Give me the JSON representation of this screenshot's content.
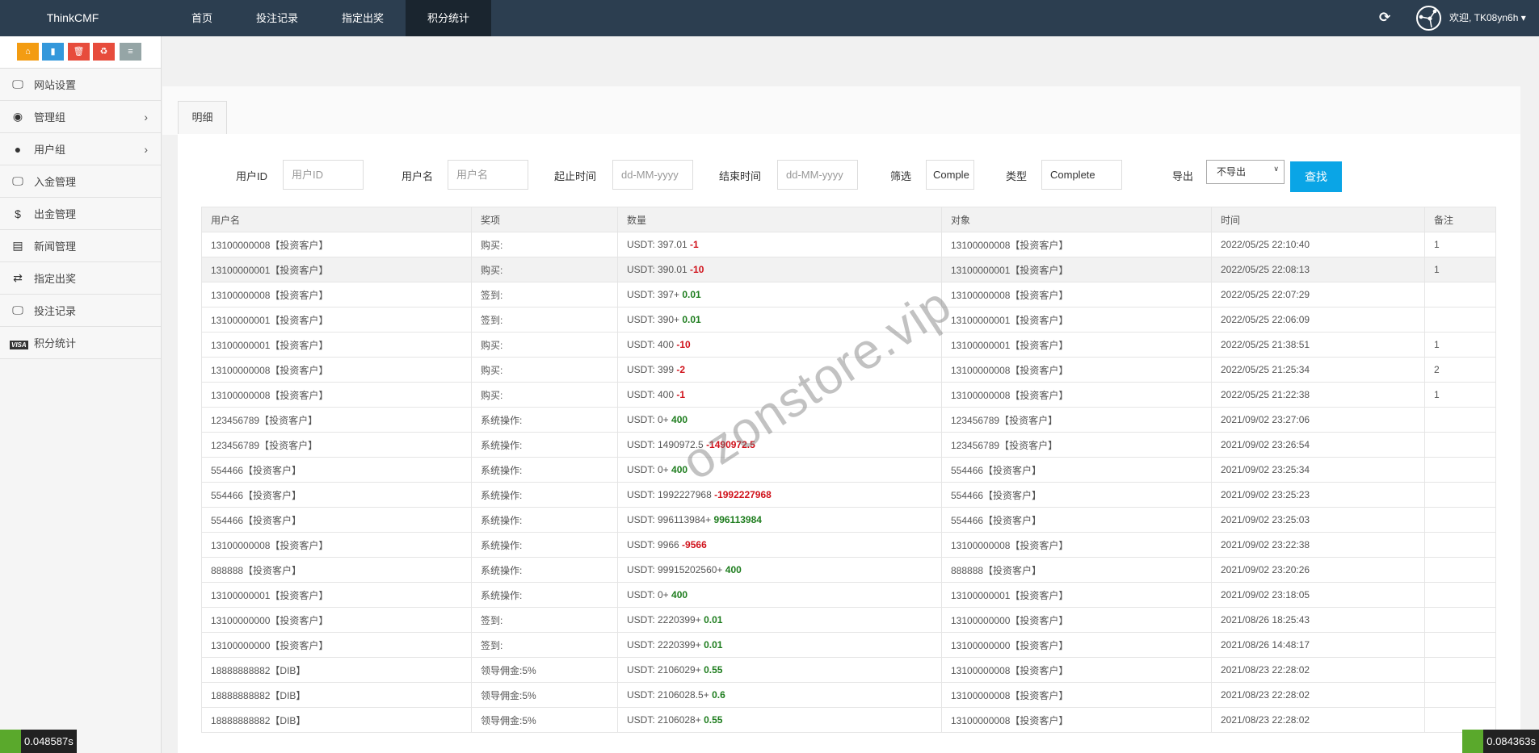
{
  "nav": {
    "brand": "ThinkCMF",
    "items": [
      "首页",
      "投注记录",
      "指定出奖",
      "积分统计"
    ],
    "active": 3,
    "welcome": "欢迎, TK08yn6h"
  },
  "quick_buttons": [
    {
      "icon": "home-icon",
      "color": "#f39c12"
    },
    {
      "icon": "file-icon",
      "color": "#3498db"
    },
    {
      "icon": "trash-icon",
      "color": "#e74c3c"
    },
    {
      "icon": "recycle-icon",
      "color": "#e74c3c"
    },
    {
      "icon": "list-icon",
      "color": "#95a5a6"
    }
  ],
  "sidebar": {
    "items": [
      {
        "label": "网站设置",
        "icon": "monitor-icon"
      },
      {
        "label": "管理组",
        "icon": "user-circle-icon",
        "chevron": true
      },
      {
        "label": "用户组",
        "icon": "user-icon",
        "chevron": true
      },
      {
        "label": "入金管理",
        "icon": "monitor-icon"
      },
      {
        "label": "出金管理",
        "icon": "dollar-icon"
      },
      {
        "label": "新闻管理",
        "icon": "newspaper-icon"
      },
      {
        "label": "指定出奖",
        "icon": "exchange-icon"
      },
      {
        "label": "投注记录",
        "icon": "monitor-icon"
      },
      {
        "label": "积分统计",
        "icon": "visa-icon",
        "visa": "VISA"
      }
    ]
  },
  "tab": "明细",
  "filters": {
    "user_id_label": "用户ID",
    "user_id_placeholder": "用户ID",
    "username_label": "用户名",
    "username_placeholder": "用户名",
    "start_label": "起止时间",
    "start_placeholder": "dd-MM-yyyy",
    "end_label": "结束时间",
    "end_placeholder": "dd-MM-yyyy",
    "filter_label": "筛选",
    "filter_value": "Comple",
    "type_label": "类型",
    "type_value": "Complete",
    "export_label": "导出",
    "export_value": "不导出",
    "search_button": "查找"
  },
  "table": {
    "headers": [
      "用户名",
      "奖项",
      "数量",
      "对象",
      "时间",
      "备注"
    ],
    "rows": [
      [
        "13100000008【投资客户】",
        "购买:",
        "USDT: 397.01 ",
        "-1",
        "neg",
        "13100000008【投资客户】",
        "2022/05/25 22:10:40",
        "1"
      ],
      [
        "13100000001【投资客户】",
        "购买:",
        "USDT: 390.01 ",
        "-10",
        "neg",
        "13100000001【投资客户】",
        "2022/05/25 22:08:13",
        "1"
      ],
      [
        "13100000008【投资客户】",
        "签到:",
        "USDT: 397+ ",
        "0.01",
        "pos",
        "13100000008【投资客户】",
        "2022/05/25 22:07:29",
        ""
      ],
      [
        "13100000001【投资客户】",
        "签到:",
        "USDT: 390+ ",
        "0.01",
        "pos",
        "13100000001【投资客户】",
        "2022/05/25 22:06:09",
        ""
      ],
      [
        "13100000001【投资客户】",
        "购买:",
        "USDT: 400 ",
        "-10",
        "neg",
        "13100000001【投资客户】",
        "2022/05/25 21:38:51",
        "1"
      ],
      [
        "13100000008【投资客户】",
        "购买:",
        "USDT: 399 ",
        "-2",
        "neg",
        "13100000008【投资客户】",
        "2022/05/25 21:25:34",
        "2"
      ],
      [
        "13100000008【投资客户】",
        "购买:",
        "USDT: 400 ",
        "-1",
        "neg",
        "13100000008【投资客户】",
        "2022/05/25 21:22:38",
        "1"
      ],
      [
        "123456789【投资客户】",
        "系统操作:",
        "USDT: 0+ ",
        "400",
        "pos",
        "123456789【投资客户】",
        "2021/09/02 23:27:06",
        ""
      ],
      [
        "123456789【投资客户】",
        "系统操作:",
        "USDT: 1490972.5 ",
        "-1490972.5",
        "neg",
        "123456789【投资客户】",
        "2021/09/02 23:26:54",
        ""
      ],
      [
        "554466【投资客户】",
        "系统操作:",
        "USDT: 0+ ",
        "400",
        "pos",
        "554466【投资客户】",
        "2021/09/02 23:25:34",
        ""
      ],
      [
        "554466【投资客户】",
        "系统操作:",
        "USDT: 1992227968 ",
        "-1992227968",
        "neg",
        "554466【投资客户】",
        "2021/09/02 23:25:23",
        ""
      ],
      [
        "554466【投资客户】",
        "系统操作:",
        "USDT: 996113984+ ",
        "996113984",
        "pos",
        "554466【投资客户】",
        "2021/09/02 23:25:03",
        ""
      ],
      [
        "13100000008【投资客户】",
        "系统操作:",
        "USDT: 9966 ",
        "-9566",
        "neg",
        "13100000008【投资客户】",
        "2021/09/02 23:22:38",
        ""
      ],
      [
        "888888【投资客户】",
        "系统操作:",
        "USDT: 99915202560+ ",
        "400",
        "pos",
        "888888【投资客户】",
        "2021/09/02 23:20:26",
        ""
      ],
      [
        "13100000001【投资客户】",
        "系统操作:",
        "USDT: 0+ ",
        "400",
        "pos",
        "13100000001【投资客户】",
        "2021/09/02 23:18:05",
        ""
      ],
      [
        "13100000000【投资客户】",
        "签到:",
        "USDT: 2220399+ ",
        "0.01",
        "pos",
        "13100000000【投资客户】",
        "2021/08/26 18:25:43",
        ""
      ],
      [
        "13100000000【投资客户】",
        "签到:",
        "USDT: 2220399+ ",
        "0.01",
        "pos",
        "13100000000【投资客户】",
        "2021/08/26 14:48:17",
        ""
      ],
      [
        "18888888882【DIB】",
        "领导佣金:5%",
        "USDT: 2106029+ ",
        "0.55",
        "pos",
        "13100000008【投资客户】",
        "2021/08/23 22:28:02",
        ""
      ],
      [
        "18888888882【DIB】",
        "领导佣金:5%",
        "USDT: 2106028.5+ ",
        "0.6",
        "pos",
        "13100000008【投资客户】",
        "2021/08/23 22:28:02",
        ""
      ],
      [
        "18888888882【DIB】",
        "领导佣金:5%",
        "USDT: 2106028+ ",
        "0.55",
        "pos",
        "13100000008【投资客户】",
        "2021/08/23 22:28:02",
        ""
      ]
    ],
    "highlighted_row": 1
  },
  "watermark": "ozonstore.vip",
  "timers": {
    "left": "0.048587s",
    "right": "0.084363s"
  },
  "colors": {
    "navbar": "#2c3e50",
    "accent": "#0aa5e6",
    "negative": "#d0121b",
    "positive": "#1e7d1e"
  }
}
